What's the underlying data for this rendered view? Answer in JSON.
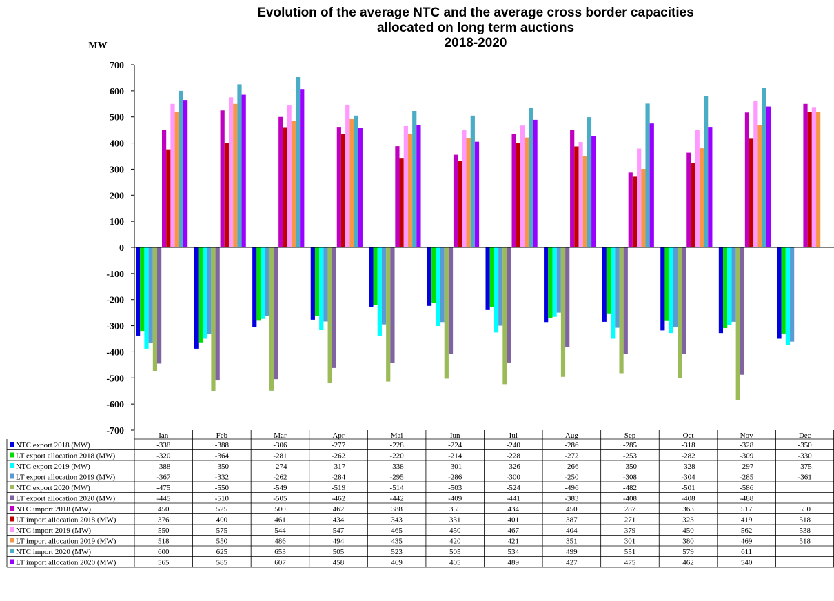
{
  "chart_data": {
    "type": "bar",
    "title": "Evolution of the average NTC and the average cross border capacities allocated on long term auctions 2018-2020",
    "title_lines": [
      "Evolution of the average NTC and the average cross border capacities",
      "allocated on long term auctions",
      "2018-2020"
    ],
    "ylabel": "MW",
    "ylim": [
      -700,
      700
    ],
    "yticks": [
      700,
      600,
      500,
      400,
      300,
      200,
      100,
      0,
      -100,
      -200,
      -300,
      -400,
      -500,
      -600,
      -700
    ],
    "grid": false,
    "legend": "data-table-below",
    "categories": [
      "Ian",
      "Feb",
      "Mar",
      "Apr",
      "Mai",
      "Iun",
      "Iul",
      "Aug",
      "Sep",
      "Oct",
      "Nov",
      "Dec"
    ],
    "series": [
      {
        "name": "NTC export 2018 (MW)",
        "color": "#0000E0",
        "values": [
          -338,
          -388,
          -306,
          -277,
          -228,
          -224,
          -240,
          -286,
          -285,
          -318,
          -328,
          -350
        ]
      },
      {
        "name": "LT export allocation 2018 (MW)",
        "color": "#00E000",
        "values": [
          -320,
          -364,
          -281,
          -262,
          -220,
          -214,
          -228,
          -272,
          -253,
          -282,
          -309,
          -330
        ]
      },
      {
        "name": "NTC export 2019 (MW)",
        "color": "#00FFFF",
        "values": [
          -388,
          -350,
          -274,
          -317,
          -338,
          -301,
          -326,
          -266,
          -350,
          -328,
          -297,
          -375
        ]
      },
      {
        "name": "LT export allocation 2019 (MW)",
        "color": "#5B9BD5",
        "values": [
          -367,
          -332,
          -262,
          -284,
          -295,
          -286,
          -300,
          -250,
          -308,
          -304,
          -285,
          -361
        ]
      },
      {
        "name": "NTC export 2020 (MW)",
        "color": "#9BBB59",
        "values": [
          -475,
          -550,
          -549,
          -519,
          -514,
          -503,
          -524,
          -496,
          -482,
          -501,
          -586,
          null
        ]
      },
      {
        "name": "LT export allocation 2020 (MW)",
        "color": "#8064A2",
        "values": [
          -445,
          -510,
          -505,
          -462,
          -442,
          -409,
          -441,
          -383,
          -408,
          -408,
          -488,
          null
        ]
      },
      {
        "name": "NTC import 2018 (MW)",
        "color": "#C000C0",
        "values": [
          450,
          525,
          500,
          462,
          388,
          355,
          434,
          450,
          287,
          363,
          517,
          550
        ]
      },
      {
        "name": "LT import allocation 2018 (MW)",
        "color": "#C00000",
        "values": [
          376,
          400,
          461,
          434,
          343,
          331,
          401,
          387,
          271,
          323,
          419,
          518
        ]
      },
      {
        "name": "NTC import 2019 (MW)",
        "color": "#FF99FF",
        "values": [
          550,
          575,
          544,
          547,
          465,
          450,
          467,
          404,
          379,
          450,
          562,
          538
        ]
      },
      {
        "name": "LT import allocation 2019 (MW)",
        "color": "#F79646",
        "values": [
          518,
          550,
          486,
          494,
          435,
          420,
          421,
          351,
          301,
          380,
          469,
          518
        ]
      },
      {
        "name": "NTC import 2020 (MW)",
        "color": "#4BACC6",
        "values": [
          600,
          625,
          653,
          505,
          523,
          505,
          534,
          499,
          551,
          579,
          611,
          null
        ]
      },
      {
        "name": "LT import allocation 2020 (MW)",
        "color": "#9900FF",
        "values": [
          565,
          585,
          607,
          458,
          469,
          405,
          489,
          427,
          475,
          462,
          540,
          null
        ]
      }
    ]
  }
}
